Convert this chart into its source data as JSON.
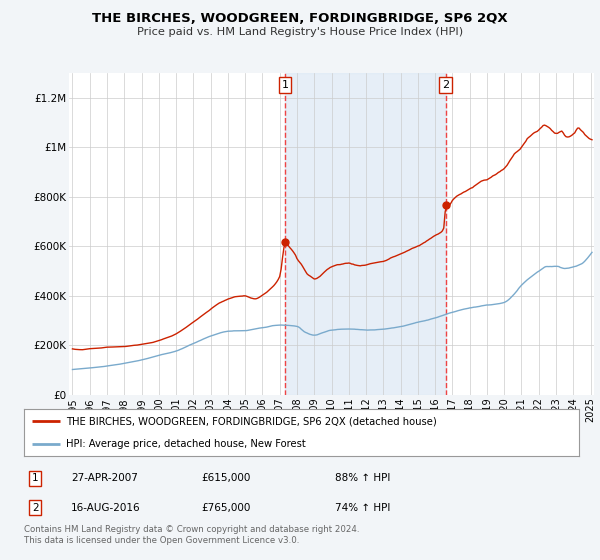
{
  "title": "THE BIRCHES, WOODGREEN, FORDINGBRIDGE, SP6 2QX",
  "subtitle": "Price paid vs. HM Land Registry's House Price Index (HPI)",
  "background_color": "#f2f5f8",
  "plot_background": "#ffffff",
  "legend_label_red": "THE BIRCHES, WOODGREEN, FORDINGBRIDGE, SP6 2QX (detached house)",
  "legend_label_blue": "HPI: Average price, detached house, New Forest",
  "footer": "Contains HM Land Registry data © Crown copyright and database right 2024.\nThis data is licensed under the Open Government Licence v3.0.",
  "sale1_date": "27-APR-2007",
  "sale1_price": "£615,000",
  "sale1_hpi": "88% ↑ HPI",
  "sale1_x": 2007.32,
  "sale1_y": 615000,
  "sale2_date": "16-AUG-2016",
  "sale2_price": "£765,000",
  "sale2_hpi": "74% ↑ HPI",
  "sale2_x": 2016.62,
  "sale2_y": 765000,
  "ylim": [
    0,
    1300000
  ],
  "xlim_start": 1994.8,
  "xlim_end": 2025.2,
  "red_color": "#cc2200",
  "blue_color": "#7aaacc",
  "vline_color": "#ee4444",
  "shade_color": "#dce8f5",
  "yticks": [
    0,
    200000,
    400000,
    600000,
    800000,
    1000000,
    1200000
  ],
  "ytick_labels": [
    "£0",
    "£200K",
    "£400K",
    "£600K",
    "£800K",
    "£1M",
    "£1.2M"
  ],
  "xticks": [
    1995,
    1996,
    1997,
    1998,
    1999,
    2000,
    2001,
    2002,
    2003,
    2004,
    2005,
    2006,
    2007,
    2008,
    2009,
    2010,
    2011,
    2012,
    2013,
    2014,
    2015,
    2016,
    2017,
    2018,
    2019,
    2020,
    2021,
    2022,
    2023,
    2024,
    2025
  ]
}
